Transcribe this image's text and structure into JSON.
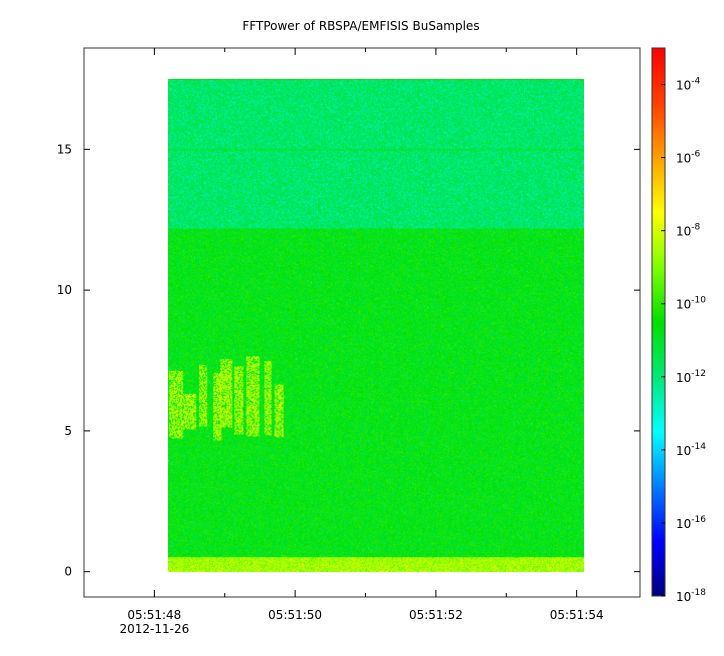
{
  "chart_data": {
    "type": "heatmap",
    "title": "FFTPower of RBSPA/EMFISIS  BuSamples",
    "xlabel": "",
    "ylabel": "",
    "x_range": [
      "05:51:47.0",
      "05:51:54.9"
    ],
    "y_range": [
      -0.9,
      18.6
    ],
    "x_ticks": [
      {
        "time": "05:51:48",
        "label": "05:51:48",
        "sublabel": "2012-11-26"
      },
      {
        "time": "05:51:50",
        "label": "05:51:50"
      },
      {
        "time": "05:51:52",
        "label": "05:51:52"
      },
      {
        "time": "05:51:54",
        "label": "05:51:54"
      }
    ],
    "x_minor_ticks": [
      "05:51:49",
      "05:51:51",
      "05:51:53"
    ],
    "y_ticks": [
      {
        "value": 0,
        "label": "0"
      },
      {
        "value": 5,
        "label": "5"
      },
      {
        "value": 10,
        "label": "10"
      },
      {
        "value": 15,
        "label": "15"
      }
    ],
    "data_extent": {
      "x_start": "05:51:48.2",
      "x_end": "05:51:54.1",
      "y_start": 0,
      "y_end": 17.5
    },
    "colorbar": {
      "scale": "log",
      "range": [
        1e-18,
        0.001
      ],
      "ticks": [
        {
          "value": 0.0001,
          "base": "10",
          "exp": "-4"
        },
        {
          "value": 1e-06,
          "base": "10",
          "exp": "-6"
        },
        {
          "value": 1e-08,
          "base": "10",
          "exp": "-8"
        },
        {
          "value": 1e-10,
          "base": "10",
          "exp": "-10"
        },
        {
          "value": 1e-12,
          "base": "10",
          "exp": "-12"
        },
        {
          "value": 1e-14,
          "base": "10",
          "exp": "-14"
        },
        {
          "value": 1e-16,
          "base": "10",
          "exp": "-16"
        },
        {
          "value": 1e-18,
          "base": "10",
          "exp": "-18"
        }
      ],
      "colors": [
        "#00007f",
        "#0000ff",
        "#007fff",
        "#00ffff",
        "#00e878",
        "#00e000",
        "#7fff00",
        "#ffff00",
        "#ff9f00",
        "#ff3f00",
        "#ff0000"
      ]
    },
    "power_bands": [
      {
        "y_from": 0,
        "y_to": 0.5,
        "log_power": -8.6
      },
      {
        "y_from": 0.5,
        "y_to": 12.2,
        "log_power": -10.7
      },
      {
        "y_from": 12.2,
        "y_to": 17.5,
        "log_power": -11.8
      }
    ],
    "enhanced_emission": {
      "x_from": "05:51:48.2",
      "x_to": "05:51:49.9",
      "y_from": 4.5,
      "y_to": 7.8,
      "log_power": -8.4
    },
    "grid": false,
    "legend": "colorbar-right"
  }
}
